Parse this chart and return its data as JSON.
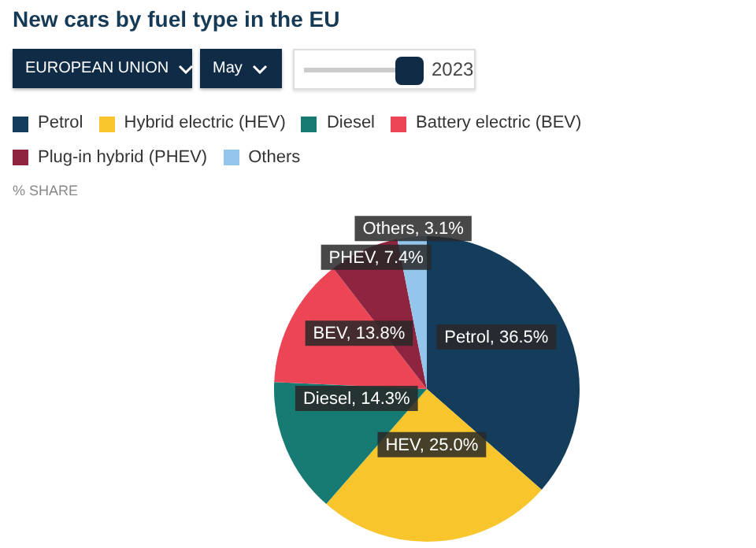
{
  "chart_data": {
    "type": "pie",
    "title": "New cars by fuel type in the EU",
    "categories": [
      "Petrol",
      "Hybrid electric (HEV)",
      "Diesel",
      "Battery electric (BEV)",
      "Plug-in hybrid (PHEV)",
      "Others"
    ],
    "values": [
      36.5,
      25.0,
      14.3,
      13.8,
      7.4,
      3.1
    ],
    "colors": [
      "#143d5c",
      "#f8c52c",
      "#177a73",
      "#ec4656",
      "#8f2441",
      "#93c6ea"
    ],
    "value_labels": [
      "Petrol, 36.5%",
      "HEV, 25.0%",
      "Diesel, 14.3%",
      "BEV, 13.8%",
      "PHEV, 7.4%",
      "Others, 3.1%"
    ],
    "annotations": [
      "EUROPEAN UNION",
      "May",
      "2023",
      "% SHARE"
    ],
    "legend": "top left"
  }
}
